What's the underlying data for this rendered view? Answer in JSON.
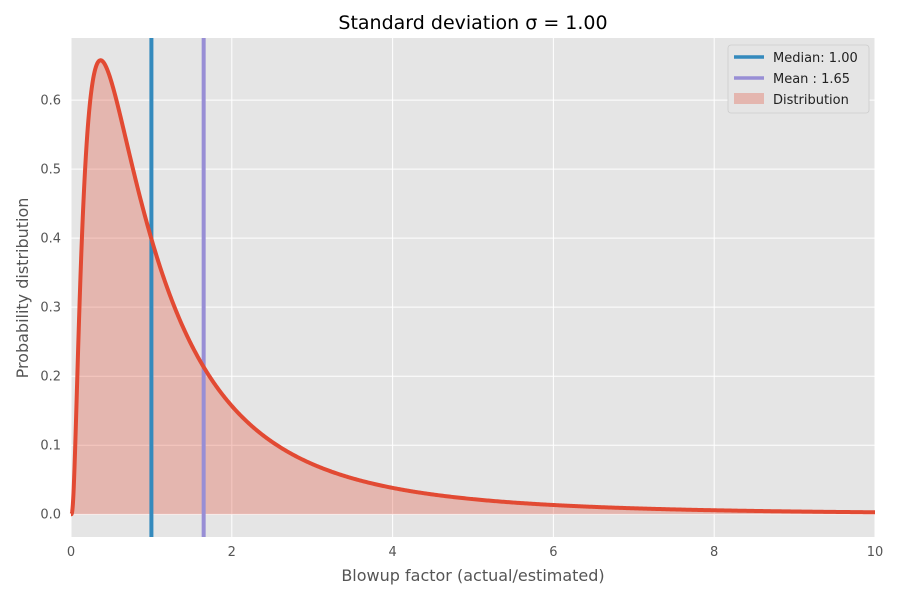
{
  "chart_data": {
    "type": "line",
    "title": "Standard deviation σ = 1.00",
    "xlabel": "Blowup factor (actual/estimated)",
    "ylabel": "Probability distribution",
    "xlim": [
      0,
      10
    ],
    "ylim": [
      -0.033,
      0.69
    ],
    "xticks": [
      0,
      2,
      4,
      6,
      8,
      10
    ],
    "yticks": [
      0.0,
      0.1,
      0.2,
      0.3,
      0.4,
      0.5,
      0.6
    ],
    "grid": true,
    "legend_position": "top-right",
    "distribution": {
      "kind": "lognormal",
      "mu": 0,
      "sigma": 1.0
    },
    "series": [
      {
        "name": "Median: 1.00",
        "kind": "vline",
        "x": 1.0,
        "color": "#348ABD"
      },
      {
        "name": "Mean : 1.65",
        "kind": "vline",
        "x": 1.65,
        "color": "#988ED5"
      },
      {
        "name": "Distribution",
        "kind": "area",
        "color": "#E24A33",
        "x": [
          0.0,
          0.1,
          0.2,
          0.37,
          0.5,
          0.75,
          1.0,
          1.5,
          2.0,
          3.0,
          4.0,
          6.0,
          8.0,
          10.0
        ],
        "y": [
          0.0,
          0.28,
          0.55,
          0.66,
          0.63,
          0.52,
          0.4,
          0.25,
          0.16,
          0.07,
          0.04,
          0.014,
          0.006,
          0.003
        ]
      }
    ]
  }
}
